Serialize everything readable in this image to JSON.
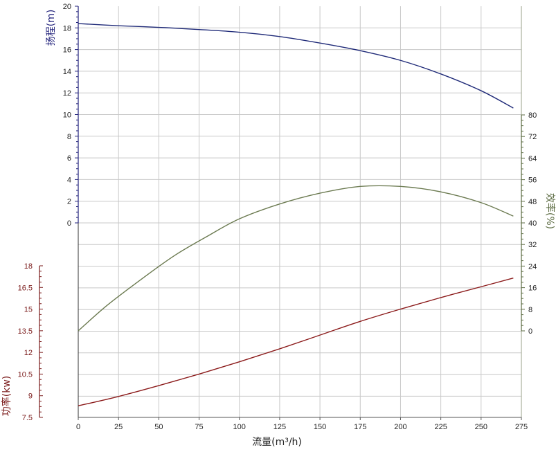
{
  "chart_data": {
    "type": "line",
    "title": "",
    "xlabel": "流量(m³/h)",
    "xlim": [
      0,
      275
    ],
    "x_ticks": [
      "0",
      "25",
      "50",
      "75",
      "100",
      "125",
      "150",
      "175",
      "200",
      "225",
      "250",
      "275"
    ],
    "grid": true,
    "axes": {
      "head": {
        "label": "扬程(m)",
        "color": "#1f1f7a",
        "ticks": [
          "0",
          "2",
          "4",
          "6",
          "8",
          "10",
          "12",
          "14",
          "16",
          "18",
          "20"
        ],
        "range": [
          0,
          20
        ]
      },
      "efficiency": {
        "label": "效率(%)",
        "color": "#5a6a40",
        "ticks": [
          "0",
          "8",
          "16",
          "24",
          "32",
          "40",
          "48",
          "56",
          "64",
          "72",
          "80"
        ],
        "range": [
          0,
          80
        ]
      },
      "power": {
        "label": "功率(kw)",
        "color": "#7a1a1a",
        "ticks": [
          "7.5",
          "9",
          "10.5",
          "12",
          "13.5",
          "15",
          "16.5",
          "18"
        ],
        "range": [
          7.5,
          18
        ]
      }
    },
    "series": [
      {
        "axis": "head",
        "color": "#1f2a78",
        "x": [
          0,
          25,
          50,
          75,
          100,
          125,
          150,
          175,
          200,
          225,
          250,
          270
        ],
        "y": [
          18.4,
          18.2,
          18.05,
          17.85,
          17.6,
          17.2,
          16.6,
          15.9,
          15.0,
          13.75,
          12.2,
          10.6
        ]
      },
      {
        "axis": "efficiency",
        "color": "#6b7a50",
        "x": [
          0,
          18,
          40,
          60,
          80,
          100,
          125,
          150,
          175,
          200,
          225,
          250,
          270
        ],
        "y": [
          0,
          9.5,
          19.5,
          28,
          35,
          41.5,
          47,
          51,
          53.5,
          53.5,
          51.5,
          47.5,
          42.5
        ]
      },
      {
        "axis": "power",
        "color": "#8b1a1a",
        "x": [
          0,
          25,
          50,
          75,
          100,
          125,
          150,
          175,
          200,
          225,
          250,
          270
        ],
        "y": [
          8.3,
          8.95,
          9.7,
          10.5,
          11.35,
          12.25,
          13.2,
          14.15,
          15.0,
          15.8,
          16.55,
          17.15
        ]
      }
    ]
  }
}
